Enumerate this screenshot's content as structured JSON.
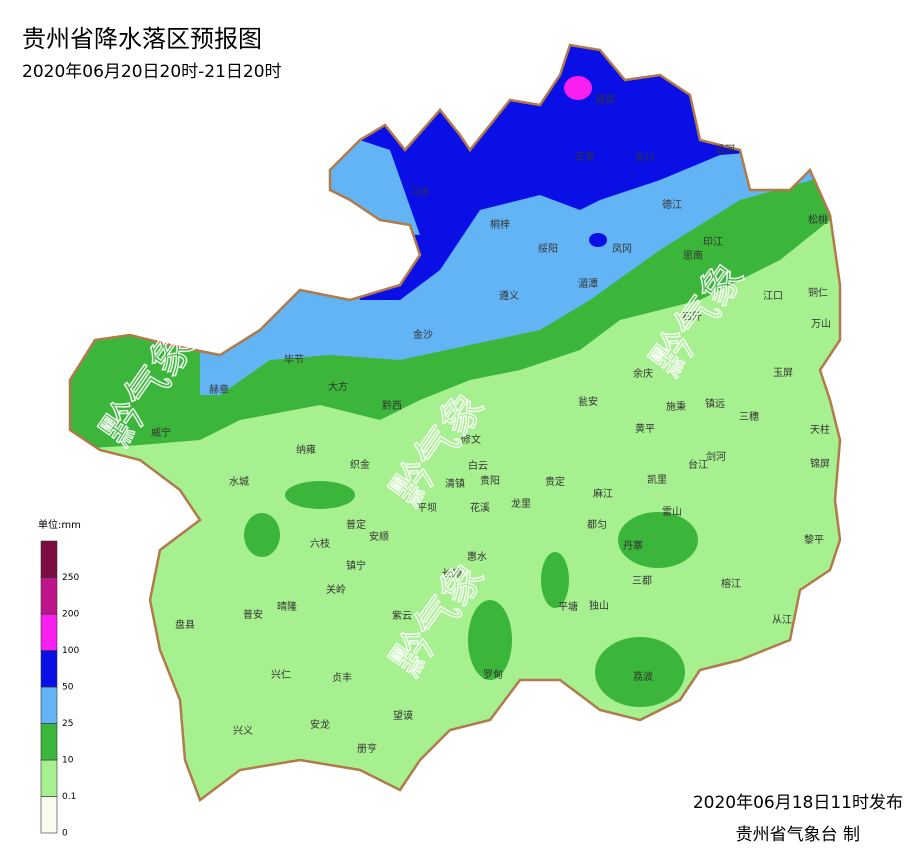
{
  "header": {
    "title": "贵州省降水落区预报图",
    "subtitle": "2020年06月20日20时-21日20时"
  },
  "legend": {
    "unit": "单位:mm",
    "ticks": [
      0,
      0.1,
      10,
      25,
      50,
      100,
      200,
      250
    ],
    "colors": [
      "#f8fbee",
      "#a6f090",
      "#3bb53a",
      "#62b4f5",
      "#0a0fe6",
      "#f81ff0",
      "#c0148c",
      "#7b0d3f"
    ]
  },
  "watermark": "黔气象",
  "places": [
    "道真",
    "正安",
    "务川",
    "沿河",
    "习水",
    "桐梓",
    "绥阳",
    "凤冈",
    "德江",
    "印江",
    "思南",
    "松桃",
    "湄潭",
    "遵义",
    "金沙",
    "铜仁",
    "江口",
    "石阡",
    "万山",
    "毕节",
    "大方",
    "赫章",
    "黔西",
    "余庆",
    "玉屏",
    "瓮安",
    "施秉",
    "镇远",
    "三穗",
    "天柱",
    "威宁",
    "纳雍",
    "修文",
    "黄平",
    "剑河",
    "锦屏",
    "织金",
    "白云",
    "贵阳",
    "清镇",
    "贵定",
    "台江",
    "凯里",
    "水城",
    "麻江",
    "平坝",
    "花溪",
    "龙里",
    "雷山",
    "黎平",
    "普定",
    "安顺",
    "都匀",
    "六枝",
    "丹寨",
    "镇宁",
    "惠水",
    "长顺",
    "三都",
    "榕江",
    "关岭",
    "平塘",
    "独山",
    "从江",
    "盘县",
    "普安",
    "晴隆",
    "紫云",
    "兴仁",
    "贞丰",
    "罗甸",
    "荔波",
    "望谟",
    "兴义",
    "安龙",
    "册亨"
  ],
  "footer": {
    "issued": "2020年06月18日11时发布",
    "agency": "贵州省气象台  制"
  }
}
